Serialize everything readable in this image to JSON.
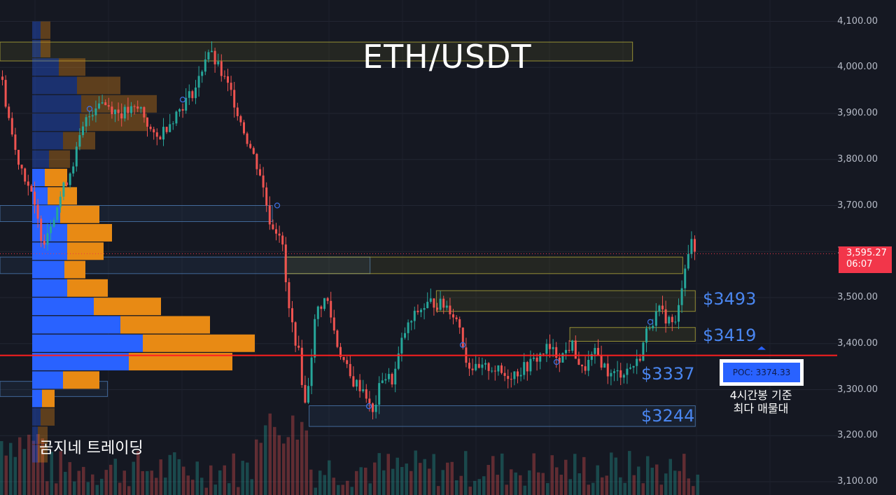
{
  "chart_data": {
    "type": "candlestick",
    "title": "ETH/USDT",
    "watermark": "곰지네 트레이딩",
    "ylim": [
      3100,
      4100
    ],
    "y_ticks": [
      "3,100.00",
      "3,200.00",
      "3,300.00",
      "3,400.00",
      "3,500.00",
      "3,600.00",
      "3,700.00",
      "3,800.00",
      "3,900.00",
      "4,000.00",
      "4,100.00"
    ],
    "y_tick_values": [
      3100,
      3200,
      3300,
      3400,
      3500,
      3600,
      3700,
      3800,
      3900,
      4000,
      4100
    ],
    "last_price": {
      "value": 3595.27,
      "label": "3,595.27",
      "countdown": "06:07",
      "color": "#f2364a"
    },
    "poc": {
      "value": 3374.33,
      "label": "POC: 3374.33",
      "note_line1": "4시간봉 기준",
      "note_line2": "최다 매물대",
      "color": "#ff1f1f"
    },
    "levels": [
      {
        "value": 3493,
        "label": "$3493"
      },
      {
        "value": 3419,
        "label": "$3419"
      },
      {
        "value": 3337,
        "label": "$3337"
      },
      {
        "value": 3244,
        "label": "$3244"
      }
    ],
    "colors": {
      "up": "#26a69a",
      "down": "#ef5350",
      "vp_buy": "#2962ff",
      "vp_sell": "#e88a14",
      "level_text": "#4a86f0"
    },
    "volume_profile": [
      {
        "price": 4080,
        "buy": 12,
        "sell": 14
      },
      {
        "price": 4040,
        "buy": 12,
        "sell": 14
      },
      {
        "price": 4000,
        "buy": 38,
        "sell": 38
      },
      {
        "price": 3960,
        "buy": 64,
        "sell": 62
      },
      {
        "price": 3920,
        "buy": 70,
        "sell": 108
      },
      {
        "price": 3880,
        "buy": 68,
        "sell": 96
      },
      {
        "price": 3840,
        "buy": 44,
        "sell": 46
      },
      {
        "price": 3800,
        "buy": 24,
        "sell": 30
      },
      {
        "price": 3760,
        "buy": 18,
        "sell": 32
      },
      {
        "price": 3720,
        "buy": 22,
        "sell": 42
      },
      {
        "price": 3680,
        "buy": 40,
        "sell": 56
      },
      {
        "price": 3640,
        "buy": 50,
        "sell": 64
      },
      {
        "price": 3600,
        "buy": 50,
        "sell": 52
      },
      {
        "price": 3560,
        "buy": 46,
        "sell": 30
      },
      {
        "price": 3520,
        "buy": 50,
        "sell": 58
      },
      {
        "price": 3480,
        "buy": 88,
        "sell": 96
      },
      {
        "price": 3440,
        "buy": 126,
        "sell": 128
      },
      {
        "price": 3400,
        "buy": 158,
        "sell": 160
      },
      {
        "price": 3360,
        "buy": 138,
        "sell": 148
      },
      {
        "price": 3320,
        "buy": 44,
        "sell": 52
      },
      {
        "price": 3280,
        "buy": 14,
        "sell": 18
      },
      {
        "price": 3240,
        "buy": 12,
        "sell": 20
      },
      {
        "price": 3200,
        "buy": 8,
        "sell": 14
      },
      {
        "price": 3160,
        "buy": 8,
        "sell": 14
      }
    ],
    "zones": [
      {
        "x0": 0.0,
        "x1": 0.706,
        "low": 4014,
        "high": 4055,
        "kind": "supply"
      },
      {
        "x0": 0.0,
        "x1": 0.304,
        "low": 3665,
        "high": 3700,
        "kind": "demand"
      },
      {
        "x0": 0.0,
        "x1": 0.413,
        "low": 3552,
        "high": 3588,
        "kind": "demand"
      },
      {
        "x0": 0.318,
        "x1": 0.762,
        "low": 3552,
        "high": 3588,
        "kind": "supply"
      },
      {
        "x0": 0.487,
        "x1": 0.776,
        "low": 3470,
        "high": 3515,
        "kind": "supply"
      },
      {
        "x0": 0.636,
        "x1": 0.776,
        "low": 3405,
        "high": 3435,
        "kind": "supply"
      },
      {
        "x0": 0.345,
        "x1": 0.776,
        "low": 3220,
        "high": 3265,
        "kind": "demand"
      },
      {
        "x0": 0.0,
        "x1": 0.12,
        "low": 3285,
        "high": 3318,
        "kind": "demand"
      }
    ]
  }
}
